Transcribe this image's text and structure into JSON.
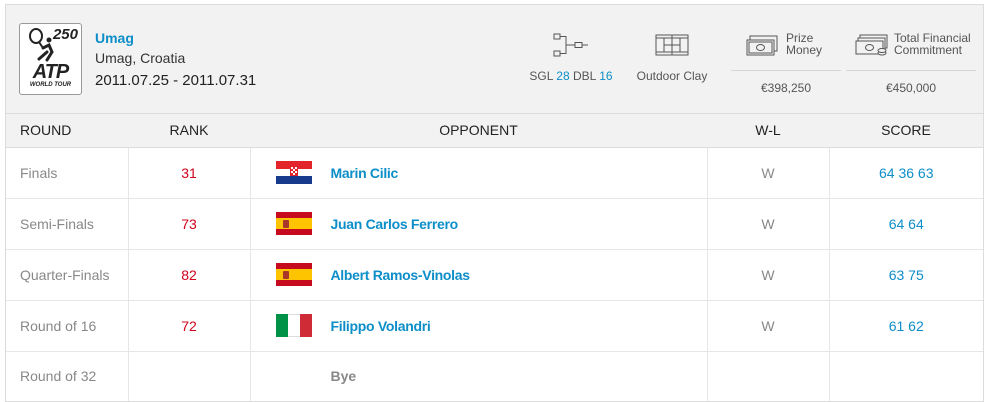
{
  "tournament": {
    "level": "250",
    "logo_text": "ATP",
    "logo_subtext": "WORLD TOUR",
    "name": "Umag",
    "location": "Umag, Croatia",
    "dates": "2011.07.25 - 2011.07.31"
  },
  "stats": {
    "draw": {
      "sgl_label": "SGL",
      "sgl_value": "28",
      "dbl_label": "DBL",
      "dbl_value": "16",
      "icon": "draw-bracket-icon"
    },
    "surface": {
      "value": "Outdoor Clay",
      "icon": "court-icon"
    },
    "prize": {
      "label_line1": "Prize",
      "label_line2": "Money",
      "value": "€398,250",
      "icon": "banknote-icon"
    },
    "financial": {
      "label_line1": "Total Financial",
      "label_line2": "Commitment",
      "value": "€450,000",
      "icon": "money-stack-icon"
    }
  },
  "table": {
    "headers": {
      "round": "ROUND",
      "rank": "RANK",
      "opponent": "OPPONENT",
      "wl": "W-L",
      "score": "SCORE"
    },
    "rows": [
      {
        "round": "Finals",
        "rank": "31",
        "flag": "croatia",
        "opponent": "Marin Cilic",
        "wl": "W",
        "score": "64 36 63"
      },
      {
        "round": "Semi-Finals",
        "rank": "73",
        "flag": "spain",
        "opponent": "Juan Carlos Ferrero",
        "wl": "W",
        "score": "64 64"
      },
      {
        "round": "Quarter-Finals",
        "rank": "82",
        "flag": "spain",
        "opponent": "Albert Ramos-Vinolas",
        "wl": "W",
        "score": "63 75"
      },
      {
        "round": "Round of 16",
        "rank": "72",
        "flag": "italy",
        "opponent": "Filippo Volandri",
        "wl": "W",
        "score": "61 62"
      },
      {
        "round": "Round of 32",
        "rank": "",
        "flag": "",
        "opponent": "Bye",
        "wl": "",
        "score": ""
      }
    ]
  },
  "colors": {
    "accent": "#0d8ec8",
    "rank": "#d0021b",
    "header_bg": "#f2f2f2"
  }
}
